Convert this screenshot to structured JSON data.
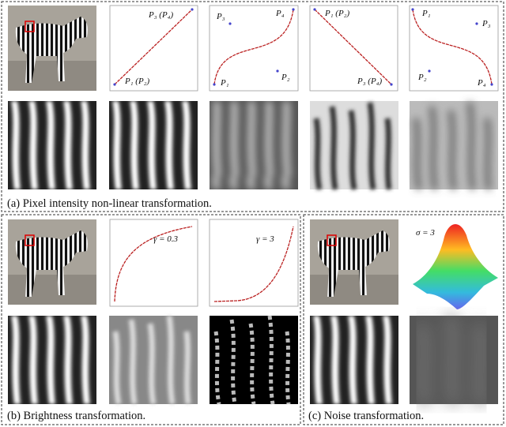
{
  "panel_a": {
    "caption": "(a) Pixel intensity non-linear transformation.",
    "curves": [
      {
        "labels": [
          "P₃ (P₄)",
          "P₁ (P₂)"
        ]
      },
      {
        "labels": [
          "P₃",
          "P₄",
          "P₂",
          "P₁"
        ]
      },
      {
        "labels": [
          "P₁ (P₂)",
          "P₃ (P₄)"
        ]
      },
      {
        "labels": [
          "P₁",
          "P₃",
          "P₂",
          "P₄"
        ]
      }
    ]
  },
  "panel_b": {
    "caption": "(b) Brightness transformation.",
    "curves": [
      {
        "label": "γ = 0.3"
      },
      {
        "label": "γ = 3"
      }
    ]
  },
  "panel_c": {
    "caption": "(c) Noise transformation.",
    "label": "σ = 3"
  }
}
